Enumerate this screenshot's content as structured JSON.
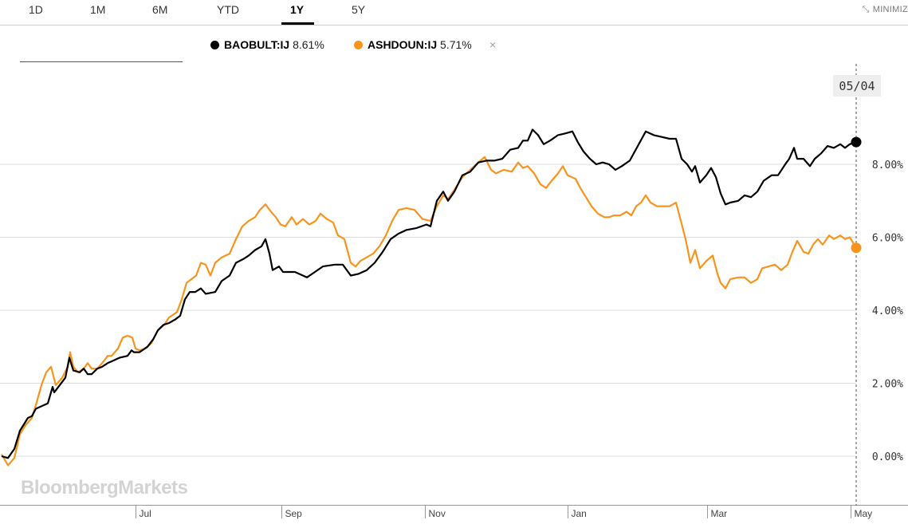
{
  "range_tabs": [
    {
      "label": "1D",
      "active": false
    },
    {
      "label": "1M",
      "active": false
    },
    {
      "label": "6M",
      "active": false
    },
    {
      "label": "YTD",
      "active": false
    },
    {
      "label": "1Y",
      "active": true
    },
    {
      "label": "5Y",
      "active": false
    }
  ],
  "minimize_label": "MINIMIZ",
  "minimize_icon": "collapse-arrows-icon",
  "legend": {
    "series": [
      {
        "ticker": "BAOBULT:IJ",
        "value": "8.61%",
        "color": "#000000"
      },
      {
        "ticker": "ASHDOUN:IJ",
        "value": "5.71%",
        "color": "#f7941d"
      }
    ],
    "close_icon": "×"
  },
  "watermark": "BloombergMarkets",
  "current_date_label": "05/04",
  "chart_data": {
    "type": "line",
    "ylim": [
      -0.8,
      9.5
    ],
    "yticks": [
      0,
      2,
      4,
      6,
      8
    ],
    "ytick_labels": [
      "0.00%",
      "2.00%",
      "4.00%",
      "6.00%",
      "8.00%"
    ],
    "xlim": [
      0,
      1074
    ],
    "x_months": [
      {
        "x": 170,
        "label": "Jul"
      },
      {
        "x": 353,
        "label": "Sep"
      },
      {
        "x": 533,
        "label": "Nov"
      },
      {
        "x": 712,
        "label": "Jan"
      },
      {
        "x": 887,
        "label": "Mar"
      },
      {
        "x": 1067,
        "label": "May"
      }
    ],
    "series": [
      {
        "name": "BAOBULT:IJ",
        "color": "#000000",
        "points": [
          [
            2,
            0
          ],
          [
            10,
            -0.05
          ],
          [
            18,
            0.2
          ],
          [
            25,
            0.7
          ],
          [
            35,
            1.05
          ],
          [
            40,
            1.1
          ],
          [
            45,
            1.3
          ],
          [
            60,
            1.45
          ],
          [
            66,
            1.9
          ],
          [
            68,
            1.75
          ],
          [
            75,
            1.95
          ],
          [
            82,
            2.15
          ],
          [
            87,
            2.7
          ],
          [
            92,
            2.35
          ],
          [
            100,
            2.3
          ],
          [
            105,
            2.4
          ],
          [
            110,
            2.25
          ],
          [
            115,
            2.25
          ],
          [
            122,
            2.4
          ],
          [
            128,
            2.45
          ],
          [
            135,
            2.55
          ],
          [
            140,
            2.6
          ],
          [
            150,
            2.7
          ],
          [
            160,
            2.75
          ],
          [
            165,
            2.9
          ],
          [
            168,
            2.85
          ],
          [
            175,
            2.85
          ],
          [
            185,
            3.0
          ],
          [
            192,
            3.2
          ],
          [
            198,
            3.45
          ],
          [
            205,
            3.6
          ],
          [
            212,
            3.65
          ],
          [
            220,
            3.75
          ],
          [
            226,
            3.85
          ],
          [
            232,
            4.3
          ],
          [
            238,
            4.5
          ],
          [
            245,
            4.5
          ],
          [
            252,
            4.6
          ],
          [
            258,
            4.45
          ],
          [
            270,
            4.5
          ],
          [
            278,
            4.8
          ],
          [
            288,
            4.95
          ],
          [
            296,
            5.3
          ],
          [
            305,
            5.4
          ],
          [
            312,
            5.5
          ],
          [
            320,
            5.65
          ],
          [
            328,
            5.75
          ],
          [
            333,
            5.95
          ],
          [
            338,
            5.55
          ],
          [
            342,
            5.1
          ],
          [
            350,
            5.2
          ],
          [
            355,
            5.05
          ],
          [
            370,
            5.05
          ],
          [
            385,
            4.9
          ],
          [
            395,
            5.05
          ],
          [
            405,
            5.2
          ],
          [
            420,
            5.25
          ],
          [
            430,
            5.25
          ],
          [
            440,
            4.95
          ],
          [
            450,
            5.0
          ],
          [
            460,
            5.1
          ],
          [
            470,
            5.3
          ],
          [
            480,
            5.6
          ],
          [
            490,
            5.95
          ],
          [
            500,
            6.1
          ],
          [
            510,
            6.2
          ],
          [
            522,
            6.25
          ],
          [
            535,
            6.35
          ],
          [
            540,
            6.3
          ],
          [
            548,
            7.0
          ],
          [
            556,
            7.25
          ],
          [
            562,
            7.0
          ],
          [
            570,
            7.25
          ],
          [
            580,
            7.7
          ],
          [
            590,
            7.8
          ],
          [
            600,
            8.05
          ],
          [
            610,
            8.1
          ],
          [
            620,
            8.1
          ],
          [
            630,
            8.15
          ],
          [
            640,
            8.4
          ],
          [
            650,
            8.45
          ],
          [
            656,
            8.65
          ],
          [
            662,
            8.65
          ],
          [
            668,
            8.95
          ],
          [
            675,
            8.8
          ],
          [
            682,
            8.55
          ],
          [
            690,
            8.65
          ],
          [
            700,
            8.8
          ],
          [
            710,
            8.85
          ],
          [
            718,
            8.9
          ],
          [
            725,
            8.6
          ],
          [
            732,
            8.35
          ],
          [
            740,
            8.15
          ],
          [
            748,
            8.0
          ],
          [
            756,
            8.05
          ],
          [
            764,
            8.0
          ],
          [
            772,
            7.85
          ],
          [
            780,
            7.95
          ],
          [
            790,
            8.1
          ],
          [
            800,
            8.5
          ],
          [
            810,
            8.9
          ],
          [
            820,
            8.8
          ],
          [
            830,
            8.75
          ],
          [
            840,
            8.7
          ],
          [
            848,
            8.7
          ],
          [
            855,
            8.15
          ],
          [
            862,
            8.0
          ],
          [
            868,
            7.8
          ],
          [
            872,
            7.95
          ],
          [
            878,
            7.5
          ],
          [
            886,
            7.7
          ],
          [
            892,
            7.9
          ],
          [
            898,
            7.65
          ],
          [
            904,
            7.2
          ],
          [
            910,
            6.9
          ],
          [
            916,
            6.95
          ],
          [
            926,
            7.0
          ],
          [
            934,
            7.15
          ],
          [
            942,
            7.1
          ],
          [
            950,
            7.25
          ],
          [
            958,
            7.55
          ],
          [
            968,
            7.7
          ],
          [
            976,
            7.7
          ],
          [
            985,
            8.0
          ],
          [
            990,
            8.15
          ],
          [
            996,
            8.45
          ],
          [
            1000,
            8.15
          ],
          [
            1008,
            8.15
          ],
          [
            1016,
            7.95
          ],
          [
            1022,
            8.15
          ],
          [
            1030,
            8.3
          ],
          [
            1038,
            8.5
          ],
          [
            1046,
            8.45
          ],
          [
            1054,
            8.55
          ],
          [
            1060,
            8.45
          ],
          [
            1066,
            8.55
          ],
          [
            1074,
            8.61
          ]
        ]
      },
      {
        "name": "ASHDOUN:IJ",
        "color": "#f7941d",
        "points": [
          [
            2,
            0.05
          ],
          [
            10,
            -0.25
          ],
          [
            18,
            -0.05
          ],
          [
            25,
            0.6
          ],
          [
            32,
            0.85
          ],
          [
            40,
            1.05
          ],
          [
            45,
            1.4
          ],
          [
            52,
            1.95
          ],
          [
            58,
            2.3
          ],
          [
            64,
            2.45
          ],
          [
            70,
            1.95
          ],
          [
            78,
            2.15
          ],
          [
            85,
            2.45
          ],
          [
            88,
            2.85
          ],
          [
            92,
            2.45
          ],
          [
            98,
            2.3
          ],
          [
            105,
            2.4
          ],
          [
            110,
            2.55
          ],
          [
            115,
            2.4
          ],
          [
            122,
            2.4
          ],
          [
            130,
            2.6
          ],
          [
            135,
            2.75
          ],
          [
            140,
            2.75
          ],
          [
            148,
            2.95
          ],
          [
            154,
            3.25
          ],
          [
            160,
            3.3
          ],
          [
            166,
            3.25
          ],
          [
            170,
            2.95
          ],
          [
            175,
            2.9
          ],
          [
            182,
            2.95
          ],
          [
            190,
            3.1
          ],
          [
            198,
            3.45
          ],
          [
            206,
            3.6
          ],
          [
            212,
            3.8
          ],
          [
            222,
            3.95
          ],
          [
            228,
            4.3
          ],
          [
            234,
            4.75
          ],
          [
            240,
            4.85
          ],
          [
            246,
            4.95
          ],
          [
            252,
            5.3
          ],
          [
            258,
            5.25
          ],
          [
            264,
            4.95
          ],
          [
            270,
            5.3
          ],
          [
            278,
            5.45
          ],
          [
            288,
            5.55
          ],
          [
            296,
            5.95
          ],
          [
            304,
            6.3
          ],
          [
            312,
            6.45
          ],
          [
            320,
            6.55
          ],
          [
            326,
            6.75
          ],
          [
            333,
            6.9
          ],
          [
            340,
            6.7
          ],
          [
            346,
            6.55
          ],
          [
            352,
            6.35
          ],
          [
            358,
            6.3
          ],
          [
            366,
            6.55
          ],
          [
            372,
            6.35
          ],
          [
            380,
            6.5
          ],
          [
            388,
            6.35
          ],
          [
            396,
            6.45
          ],
          [
            402,
            6.65
          ],
          [
            410,
            6.5
          ],
          [
            418,
            6.4
          ],
          [
            424,
            6.05
          ],
          [
            432,
            5.95
          ],
          [
            440,
            5.3
          ],
          [
            446,
            5.2
          ],
          [
            452,
            5.35
          ],
          [
            460,
            5.45
          ],
          [
            468,
            5.55
          ],
          [
            476,
            5.75
          ],
          [
            484,
            6.05
          ],
          [
            492,
            6.45
          ],
          [
            500,
            6.75
          ],
          [
            510,
            6.8
          ],
          [
            520,
            6.75
          ],
          [
            530,
            6.5
          ],
          [
            540,
            6.45
          ],
          [
            548,
            6.85
          ],
          [
            556,
            7.15
          ],
          [
            562,
            7.05
          ],
          [
            570,
            7.3
          ],
          [
            580,
            7.65
          ],
          [
            590,
            7.85
          ],
          [
            600,
            8.05
          ],
          [
            608,
            8.2
          ],
          [
            616,
            7.85
          ],
          [
            622,
            7.75
          ],
          [
            632,
            7.85
          ],
          [
            642,
            7.8
          ],
          [
            650,
            8.05
          ],
          [
            656,
            7.9
          ],
          [
            662,
            7.95
          ],
          [
            670,
            7.75
          ],
          [
            678,
            7.45
          ],
          [
            685,
            7.35
          ],
          [
            692,
            7.55
          ],
          [
            700,
            7.75
          ],
          [
            706,
            7.95
          ],
          [
            712,
            7.7
          ],
          [
            722,
            7.6
          ],
          [
            728,
            7.35
          ],
          [
            735,
            7.1
          ],
          [
            742,
            6.85
          ],
          [
            750,
            6.65
          ],
          [
            758,
            6.55
          ],
          [
            764,
            6.55
          ],
          [
            770,
            6.6
          ],
          [
            778,
            6.6
          ],
          [
            786,
            6.7
          ],
          [
            792,
            6.6
          ],
          [
            798,
            6.85
          ],
          [
            804,
            6.95
          ],
          [
            810,
            7.15
          ],
          [
            816,
            6.95
          ],
          [
            824,
            6.85
          ],
          [
            832,
            6.85
          ],
          [
            840,
            6.85
          ],
          [
            848,
            6.95
          ],
          [
            854,
            6.45
          ],
          [
            860,
            5.95
          ],
          [
            866,
            5.3
          ],
          [
            872,
            5.65
          ],
          [
            878,
            5.15
          ],
          [
            886,
            5.35
          ],
          [
            894,
            5.5
          ],
          [
            900,
            5.0
          ],
          [
            904,
            4.75
          ],
          [
            910,
            4.6
          ],
          [
            916,
            4.85
          ],
          [
            926,
            4.9
          ],
          [
            934,
            4.9
          ],
          [
            942,
            4.75
          ],
          [
            950,
            4.85
          ],
          [
            956,
            5.15
          ],
          [
            964,
            5.2
          ],
          [
            972,
            5.25
          ],
          [
            980,
            5.1
          ],
          [
            988,
            5.25
          ],
          [
            994,
            5.6
          ],
          [
            1000,
            5.9
          ],
          [
            1008,
            5.6
          ],
          [
            1014,
            5.55
          ],
          [
            1020,
            5.8
          ],
          [
            1026,
            5.95
          ],
          [
            1032,
            5.8
          ],
          [
            1040,
            6.05
          ],
          [
            1046,
            5.95
          ],
          [
            1054,
            6.05
          ],
          [
            1060,
            5.95
          ],
          [
            1066,
            6.0
          ],
          [
            1074,
            5.71
          ]
        ]
      }
    ]
  }
}
